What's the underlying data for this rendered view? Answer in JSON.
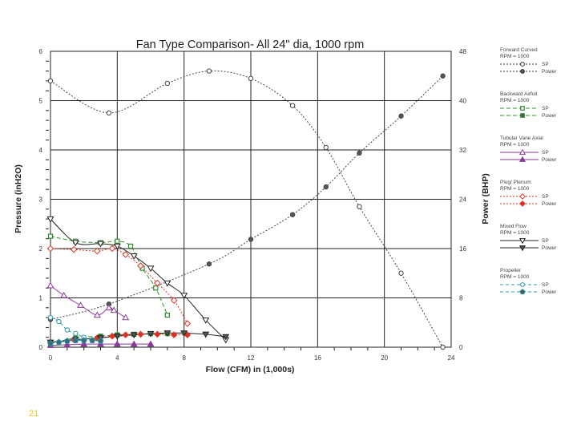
{
  "slide_number": "21",
  "chart_data": {
    "type": "line",
    "title": "Fan Type Comparison- All 24\" dia, 1000 rpm",
    "xlabel": "Flow (CFM) in (1,000s)",
    "ylabel": "Pressure (inH2O)",
    "y2label": "Power (BHP)",
    "xlim": [
      0,
      24
    ],
    "ylim": [
      0,
      6
    ],
    "y2lim": [
      0,
      48
    ],
    "xticks": [
      "0",
      "4",
      "8",
      "12",
      "16",
      "20",
      "24"
    ],
    "yticks": [
      "0",
      "1",
      "2",
      "3",
      "4",
      "5",
      "6"
    ],
    "y2ticks": [
      "0",
      "8",
      "16",
      "24",
      "32",
      "40",
      "48"
    ],
    "x_tick_values": [
      0,
      4,
      8,
      12,
      16,
      20,
      24
    ],
    "y_tick_values": [
      0,
      1,
      2,
      3,
      4,
      5,
      6
    ],
    "y2_tick_values": [
      0,
      8,
      16,
      24,
      32,
      40,
      48
    ],
    "grid": true,
    "legend_position": "right",
    "legend_groups": [
      {
        "title": "Forward Curved",
        "rpm": "RPM = 1000",
        "sp": "SP",
        "power": "Power",
        "color": "#333333",
        "marker": "circle",
        "dash": "2,2"
      },
      {
        "title": "Backward Airfoil",
        "rpm": "RPM = 1000",
        "sp": "SP",
        "power": "Power",
        "color": "#2e8b2e",
        "marker": "square",
        "dash": "5,3"
      },
      {
        "title": "Tubular Vane Axial",
        "rpm": "RPM = 1000",
        "sp": "SP",
        "power": "Power",
        "color": "#8a3a9a",
        "marker": "triangle",
        "dash": ""
      },
      {
        "title": "Plug/ Plenum",
        "rpm": "RPM = 1000",
        "sp": "SP",
        "power": "Power",
        "color": "#dd3322",
        "marker": "diamond",
        "dash": "2,2"
      },
      {
        "title": "Mixed Flow",
        "rpm": "RPM = 1000",
        "sp": "SP",
        "power": "Power",
        "color": "#222222",
        "marker": "invtriangle",
        "dash": ""
      },
      {
        "title": "Propeller",
        "rpm": "RPM = 1000",
        "sp": "SP",
        "power": "Power",
        "color": "#2a9aa8",
        "marker": "circle",
        "dash": "4,3"
      }
    ],
    "series": [
      {
        "name": "Forward Curved SP",
        "axis": "left",
        "color": "#444444",
        "marker": "circle",
        "fill": "none",
        "dash": "2,2",
        "x": [
          0,
          3.5,
          7,
          9.5,
          12,
          14.5,
          16.5,
          18.5,
          21,
          23.5
        ],
        "y": [
          5.4,
          4.75,
          5.35,
          5.6,
          5.45,
          4.9,
          4.05,
          2.85,
          1.5,
          0
        ]
      },
      {
        "name": "Forward Curved Power",
        "axis": "right",
        "color": "#444444",
        "marker": "circle",
        "fill": "#555555",
        "dash": "2,2",
        "x": [
          0,
          3.5,
          9.5,
          12,
          14.5,
          16.5,
          18.5,
          21,
          23.5
        ],
        "y": [
          4.5,
          7,
          13.5,
          17.5,
          21.5,
          26,
          31.5,
          37.5,
          44
        ]
      },
      {
        "name": "Backward Airfoil SP",
        "axis": "left",
        "color": "#2e8b2e",
        "marker": "square",
        "fill": "none",
        "dash": "5,3",
        "x": [
          0,
          1.5,
          3,
          4,
          4.8,
          5.5,
          6.3,
          7
        ],
        "y": [
          2.25,
          2.15,
          2.12,
          2.15,
          2.05,
          1.6,
          1.2,
          0.65
        ]
      },
      {
        "name": "Backward Airfoil Power",
        "axis": "right",
        "color": "#2e8b2e",
        "marker": "square",
        "fill": "#5a5a5a",
        "dash": "5,3",
        "x": [
          0,
          1.5,
          3,
          4,
          5,
          6,
          7
        ],
        "y": [
          0.6,
          1.5,
          1.8,
          2,
          2.1,
          2.2,
          2.2
        ]
      },
      {
        "name": "Tubular Vane Axial SP",
        "axis": "left",
        "color": "#8a3a9a",
        "marker": "triangle",
        "fill": "none",
        "dash": "",
        "x": [
          0,
          0.8,
          1.8,
          2.8,
          3.5,
          3.8,
          4.5
        ],
        "y": [
          1.25,
          1.05,
          0.85,
          0.65,
          0.8,
          0.75,
          0.6
        ]
      },
      {
        "name": "Tubular Vane Axial Power",
        "axis": "right",
        "color": "#8a3a9a",
        "marker": "triangle",
        "fill": "#8a3a9a",
        "dash": "",
        "x": [
          0,
          1,
          2,
          3,
          4,
          5,
          6
        ],
        "y": [
          0.3,
          0.4,
          0.5,
          0.5,
          0.5,
          0.5,
          0.5
        ]
      },
      {
        "name": "Plug/ Plenum SP",
        "axis": "left",
        "color": "#dd3322",
        "marker": "diamond",
        "fill": "none",
        "dash": "2,2",
        "x": [
          0,
          1.4,
          2.8,
          3.7,
          4.5,
          5.4,
          6.4,
          7.4,
          8.2
        ],
        "y": [
          2,
          1.98,
          1.95,
          2,
          1.88,
          1.65,
          1.3,
          0.95,
          0.48
        ]
      },
      {
        "name": "Plug/ Plenum Power",
        "axis": "right",
        "color": "#dd3322",
        "marker": "diamond",
        "fill": "#dd3322",
        "dash": "2,2",
        "x": [
          0,
          1.4,
          2.8,
          3.7,
          4.5,
          5.4,
          6.4,
          7.4,
          8.2
        ],
        "y": [
          0.8,
          1.2,
          1.5,
          1.8,
          2,
          2.1,
          2.1,
          2,
          2
        ]
      },
      {
        "name": "Mixed Flow SP",
        "axis": "left",
        "color": "#222222",
        "marker": "invtriangle",
        "fill": "none",
        "dash": "",
        "x": [
          0,
          1.5,
          3,
          4,
          5,
          6,
          7,
          8,
          9.3,
          10.5
        ],
        "y": [
          2.6,
          2.12,
          2.1,
          2.05,
          1.85,
          1.6,
          1.3,
          1.05,
          0.55,
          0.15
        ]
      },
      {
        "name": "Mixed Flow Power",
        "axis": "right",
        "color": "#222222",
        "marker": "invtriangle",
        "fill": "#555555",
        "dash": "",
        "x": [
          0,
          1.5,
          3,
          4,
          5,
          6,
          7,
          8,
          9.3,
          10.5
        ],
        "y": [
          0.8,
          1.2,
          1.5,
          1.8,
          2,
          2.2,
          2.3,
          2.3,
          2.1,
          1.7
        ]
      },
      {
        "name": "Propeller SP",
        "axis": "left",
        "color": "#2a9aa8",
        "marker": "circle",
        "fill": "none",
        "dash": "4,3",
        "x": [
          0,
          0.5,
          1,
          1.5,
          2,
          2.5,
          3
        ],
        "y": [
          0.6,
          0.52,
          0.35,
          0.28,
          0.2,
          0.15,
          0.12
        ]
      },
      {
        "name": "Propeller Power",
        "axis": "right",
        "color": "#2a9aa8",
        "marker": "pentagon",
        "fill": "#3a6a7a",
        "dash": "4,3",
        "x": [
          0,
          0.5,
          1,
          1.5,
          2,
          2.5,
          3
        ],
        "y": [
          0.6,
          0.8,
          1,
          1.1,
          1.1,
          1.1,
          1
        ]
      }
    ]
  }
}
